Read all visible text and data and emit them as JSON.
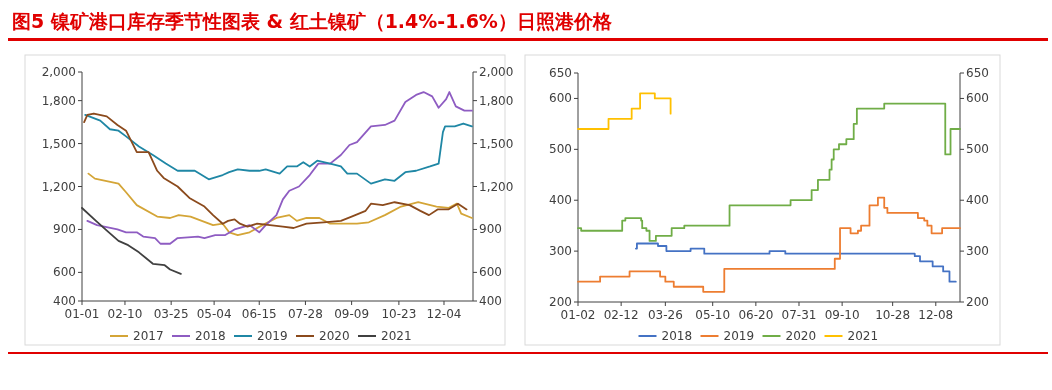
{
  "chart_data": [
    {
      "type": "line",
      "title": "图5 镍矿港口库存季节性图表 & 红土镍矿（1.4%-1.6%）日照港价格",
      "xlim": [
        "--01-01",
        "--12-31"
      ],
      "xticks": [
        {
          "value": "--01-01",
          "label": "01-01"
        },
        {
          "value": "--02-10",
          "label": "02-10"
        },
        {
          "value": "--03-25",
          "label": "03-25"
        },
        {
          "value": "--05-04",
          "label": "05-04"
        },
        {
          "value": "--06-15",
          "label": "06-15"
        },
        {
          "value": "--07-28",
          "label": "07-28"
        },
        {
          "value": "--09-09",
          "label": "09-09"
        },
        {
          "value": "--10-23",
          "label": "10-23"
        },
        {
          "value": "--12-04",
          "label": "12-04"
        }
      ],
      "ylim": [
        400,
        2000
      ],
      "yticks": [
        400,
        600,
        900,
        {
          "value": 1200,
          "label": "1,200"
        },
        {
          "value": 1500,
          "label": "1,500"
        },
        {
          "value": 1800,
          "label": "1,800"
        },
        {
          "value": 2000,
          "label": "2,000"
        }
      ],
      "y2lim": [
        400,
        2000
      ],
      "y2ticks": [
        400,
        600,
        900,
        {
          "value": 1200,
          "label": "1,200"
        },
        {
          "value": 1500,
          "label": "1,500"
        },
        {
          "value": 1800,
          "label": "1,800"
        },
        {
          "value": 2000,
          "label": "2,000"
        }
      ],
      "grid": false,
      "legend": "bottom",
      "marker": "none",
      "line_style": "solid",
      "series": [
        {
          "name": "2017",
          "color": "#d4a537",
          "x": [
            "--01-07",
            "--01-13",
            "--02-04",
            "--02-11",
            "--02-21",
            "--03-12",
            "--03-24",
            "--04-01",
            "--04-12",
            "--05-03",
            "--05-12",
            "--05-18",
            "--05-26",
            "--06-06",
            "--06-18",
            "--07-01",
            "--07-13",
            "--07-20",
            "--07-29",
            "--08-10",
            "--08-20",
            "--09-02",
            "--09-14",
            "--09-25",
            "--10-10",
            "--10-25",
            "--11-10",
            "--11-27",
            "--12-08",
            "--12-16",
            "--12-20",
            "--12-30"
          ],
          "values": [
            1290,
            1255,
            1220,
            1160,
            1070,
            990,
            980,
            1000,
            990,
            930,
            940,
            880,
            860,
            880,
            930,
            980,
            1000,
            960,
            980,
            980,
            940,
            940,
            940,
            950,
            1000,
            1060,
            1090,
            1060,
            1050,
            1080,
            1010,
            980
          ]
        },
        {
          "name": "2018",
          "color": "#8e5cc2",
          "x": [
            "--01-06",
            "--01-15",
            "--02-03",
            "--02-11",
            "--02-21",
            "--02-27",
            "--03-10",
            "--03-15",
            "--03-24",
            "--03-31",
            "--04-19",
            "--04-25",
            "--05-05",
            "--05-14",
            "--05-23",
            "--06-06",
            "--06-15",
            "--06-21",
            "--07-01",
            "--07-07",
            "--07-13",
            "--07-22",
            "--08-01",
            "--08-09",
            "--08-20",
            "--08-30",
            "--09-07",
            "--09-14",
            "--09-27",
            "--10-10",
            "--10-19",
            "--10-29",
            "--11-08",
            "--11-15",
            "--11-23",
            "--11-29",
            "--12-06",
            "--12-09",
            "--12-15",
            "--12-23",
            "--12-30"
          ],
          "values": [
            960,
            930,
            900,
            880,
            880,
            850,
            840,
            800,
            800,
            840,
            850,
            840,
            860,
            860,
            900,
            930,
            880,
            930,
            1000,
            1110,
            1170,
            1200,
            1280,
            1360,
            1360,
            1420,
            1490,
            1510,
            1620,
            1630,
            1660,
            1790,
            1840,
            1860,
            1830,
            1750,
            1810,
            1860,
            1760,
            1730,
            1730
          ]
        },
        {
          "name": "2019",
          "color": "#1f87a5",
          "x": [
            "--01-04",
            "--01-18",
            "--01-27",
            "--02-04",
            "--02-11",
            "--02-23",
            "--03-08",
            "--03-20",
            "--03-31",
            "--04-16",
            "--04-29",
            "--05-12",
            "--05-18",
            "--05-26",
            "--06-06",
            "--06-15",
            "--06-21",
            "--07-04",
            "--07-11",
            "--07-20",
            "--07-26",
            "--08-01",
            "--08-08",
            "--08-20",
            "--08-30",
            "--09-05",
            "--09-14",
            "--09-27",
            "--10-10",
            "--10-19",
            "--10-29",
            "--11-08",
            "--11-21",
            "--11-29",
            "--12-03",
            "--12-05",
            "--12-14",
            "--12-22",
            "--12-30"
          ],
          "values": [
            1700,
            1660,
            1600,
            1590,
            1550,
            1480,
            1420,
            1360,
            1310,
            1310,
            1250,
            1280,
            1300,
            1320,
            1310,
            1310,
            1320,
            1290,
            1340,
            1340,
            1370,
            1340,
            1380,
            1360,
            1340,
            1290,
            1290,
            1220,
            1250,
            1240,
            1300,
            1310,
            1340,
            1360,
            1580,
            1620,
            1620,
            1640,
            1620
          ]
        },
        {
          "name": "2020",
          "color": "#8b4a1c",
          "x": [
            "--01-03",
            "--01-06",
            "--01-12",
            "--01-24",
            "--02-03",
            "--02-11",
            "--02-21",
            "--03-04",
            "--03-12",
            "--03-18",
            "--03-31",
            "--04-11",
            "--04-25",
            "--05-03",
            "--05-12",
            "--05-17",
            "--05-23",
            "--05-28",
            "--06-04",
            "--06-13",
            "--06-25",
            "--07-07",
            "--07-17",
            "--07-29",
            "--08-14",
            "--08-30",
            "--09-09",
            "--09-22",
            "--09-27",
            "--10-08",
            "--10-19",
            "--11-02",
            "--11-12",
            "--11-20",
            "--11-28",
            "--12-08",
            "--12-17",
            "--12-25"
          ],
          "values": [
            1650,
            1700,
            1710,
            1690,
            1630,
            1590,
            1440,
            1440,
            1310,
            1260,
            1200,
            1120,
            1060,
            1000,
            940,
            960,
            970,
            940,
            920,
            940,
            930,
            920,
            910,
            940,
            950,
            960,
            990,
            1030,
            1080,
            1070,
            1090,
            1070,
            1030,
            1000,
            1040,
            1040,
            1080,
            1040
          ]
        },
        {
          "name": "2021",
          "color": "#404040",
          "x": [
            "--01-01",
            "--01-14",
            "--01-26",
            "--02-04",
            "--02-13",
            "--02-23",
            "--03-08",
            "--03-19",
            "--03-24",
            "--04-03"
          ],
          "values": [
            1050,
            960,
            880,
            820,
            790,
            740,
            660,
            650,
            620,
            590
          ]
        }
      ]
    },
    {
      "type": "step",
      "xlim": [
        "--01-02",
        "--12-31"
      ],
      "xticks": [
        {
          "value": "--01-02",
          "label": "01-02"
        },
        {
          "value": "--02-12",
          "label": "02-12"
        },
        {
          "value": "--03-26",
          "label": "03-26"
        },
        {
          "value": "--05-10",
          "label": "05-10"
        },
        {
          "value": "--06-20",
          "label": "06-20"
        },
        {
          "value": "--07-31",
          "label": "07-31"
        },
        {
          "value": "--09-10",
          "label": "09-10"
        },
        {
          "value": "--10-28",
          "label": "10-28"
        },
        {
          "value": "--12-08",
          "label": "12-08"
        }
      ],
      "ylim": [
        200,
        650
      ],
      "yticks": [
        200,
        300,
        400,
        500,
        600,
        650
      ],
      "y2lim": [
        200,
        650
      ],
      "y2ticks": [
        200,
        300,
        400,
        500,
        600,
        650
      ],
      "grid": false,
      "legend": "bottom",
      "marker": "none",
      "line_style": "solid",
      "series": [
        {
          "name": "2018",
          "color": "#4472c4",
          "x": [
            "--02-26",
            "--02-27",
            "--03-19",
            "--03-27",
            "--04-19",
            "--05-02",
            "--07-03",
            "--07-18",
            "--11-18",
            "--11-23",
            "--12-05",
            "--12-15",
            "--12-21",
            "--12-27"
          ],
          "values": [
            305,
            315,
            310,
            300,
            305,
            295,
            300,
            295,
            290,
            280,
            270,
            260,
            240,
            240
          ]
        },
        {
          "name": "2019",
          "color": "#ed7d31",
          "x": [
            "--01-02",
            "--01-23",
            "--02-20",
            "--03-21",
            "--03-26",
            "--04-03",
            "--05-01",
            "--05-21",
            "--09-03",
            "--09-08",
            "--09-18",
            "--09-25",
            "--09-28",
            "--10-06",
            "--10-14",
            "--10-20",
            "--10-23",
            "--11-21",
            "--11-27",
            "--11-30",
            "--12-04",
            "--12-14",
            "--12-31"
          ],
          "values": [
            240,
            250,
            260,
            250,
            240,
            230,
            220,
            265,
            285,
            345,
            335,
            340,
            350,
            390,
            405,
            385,
            375,
            365,
            360,
            350,
            335,
            345,
            345
          ]
        },
        {
          "name": "2020",
          "color": "#70ad47",
          "x": [
            "--01-02",
            "--01-05",
            "--02-13",
            "--02-16",
            "--03-03",
            "--03-04",
            "--03-08",
            "--03-11",
            "--03-17",
            "--04-01",
            "--04-13",
            "--05-26",
            "--07-23",
            "--08-12",
            "--08-18",
            "--08-29",
            "--08-31",
            "--09-02",
            "--09-07",
            "--09-14",
            "--09-21",
            "--09-24",
            "--10-20",
            "--12-17",
            "--12-22",
            "--12-31"
          ],
          "values": [
            345,
            340,
            360,
            365,
            360,
            345,
            340,
            320,
            330,
            345,
            350,
            390,
            400,
            420,
            440,
            460,
            480,
            500,
            510,
            520,
            550,
            580,
            590,
            490,
            540,
            540
          ]
        },
        {
          "name": "2021",
          "color": "#ffc000",
          "x": [
            "--01-02",
            "--01-31",
            "--02-22",
            "--03-02",
            "--03-16",
            "--03-30",
            "--03-31"
          ],
          "values": [
            540,
            560,
            580,
            610,
            600,
            600,
            570
          ]
        }
      ]
    }
  ]
}
